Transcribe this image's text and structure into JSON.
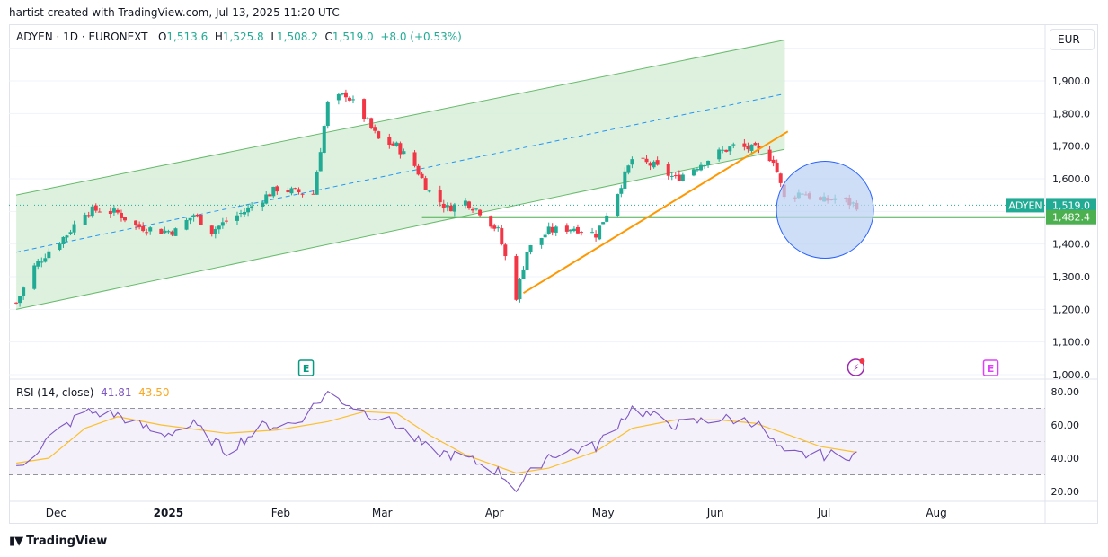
{
  "attribution": "hartist created with TradingView.com, Jul 13, 2025 11:20 UTC",
  "header": {
    "symbol": "ADYEN · 1D · EURONEXT",
    "o_label": "O",
    "o_value": "1,513.6",
    "h_label": "H",
    "h_value": "1,525.8",
    "l_label": "L",
    "l_value": "1,508.2",
    "c_label": "C",
    "c_value": "1,519.0",
    "change": "+8.0 (+0.53%)"
  },
  "currency_button": "EUR",
  "rsi_legend": {
    "name": "RSI (14, close)",
    "rsi_value": "41.81",
    "ma_value": "43.50"
  },
  "brand": "TradingView",
  "colors": {
    "up": "#22ab94",
    "down": "#f23645",
    "channel_fill": "#d8efd9",
    "channel_line": "#66bb6a",
    "mid_line": "#2196f3",
    "trend": "#ff9800",
    "support": "#4caf50",
    "circle_fill": "#bcd3f3",
    "rsi_line": "#7e57c2",
    "rsi_ma": "#fbc02d",
    "rsi_band": "#ede7f6"
  },
  "chart_data": [
    {
      "type": "candlestick",
      "title": "ADYEN · 1D · EURONEXT",
      "ylim": [
        1000,
        2030
      ],
      "y_ticks": [
        "1,000.0",
        "1,100.0",
        "1,200.0",
        "1,300.0",
        "1,400.0",
        "1,500.0",
        "1,600.0",
        "1,700.0",
        "1,800.0",
        "1,900.0"
      ],
      "x_ticks": [
        "Dec",
        "2025",
        "Feb",
        "Mar",
        "Apr",
        "May",
        "Jun",
        "Jul",
        "Aug"
      ],
      "price_labels": [
        {
          "text": "ADYEN",
          "value": 1519.0
        },
        {
          "text": "1,519.0",
          "value": 1519.0
        },
        {
          "text": "1,482.4",
          "value": 1482.4
        }
      ],
      "support_level": 1482.4,
      "event_markers": [
        "E",
        "E"
      ],
      "series": [
        {
          "name": "ADYEN",
          "path": [
            [
              "2024-11-20",
              1220
            ],
            [
              "2024-11-25",
              1330
            ],
            [
              "2024-11-29",
              1380
            ],
            [
              "2024-12-04",
              1430
            ],
            [
              "2024-12-09",
              1500
            ],
            [
              "2024-12-13",
              1505
            ],
            [
              "2024-12-18",
              1495
            ],
            [
              "2024-12-23",
              1455
            ],
            [
              "2024-12-30",
              1440
            ],
            [
              "2025-01-03",
              1440
            ],
            [
              "2025-01-08",
              1490
            ],
            [
              "2025-01-13",
              1440
            ],
            [
              "2025-01-17",
              1470
            ],
            [
              "2025-01-22",
              1500
            ],
            [
              "2025-01-27",
              1540
            ],
            [
              "2025-01-31",
              1570
            ],
            [
              "2025-02-05",
              1560
            ],
            [
              "2025-02-10",
              1555
            ],
            [
              "2025-02-14",
              1830
            ],
            [
              "2025-02-19",
              1860
            ],
            [
              "2025-02-24",
              1790
            ],
            [
              "2025-02-28",
              1720
            ],
            [
              "2025-03-05",
              1700
            ],
            [
              "2025-03-10",
              1640
            ],
            [
              "2025-03-14",
              1560
            ],
            [
              "2025-03-19",
              1510
            ],
            [
              "2025-03-24",
              1530
            ],
            [
              "2025-03-28",
              1500
            ],
            [
              "2025-04-02",
              1440
            ],
            [
              "2025-04-07",
              1240
            ],
            [
              "2025-04-10",
              1380
            ],
            [
              "2025-04-16",
              1440
            ],
            [
              "2025-04-23",
              1450
            ],
            [
              "2025-04-29",
              1430
            ],
            [
              "2025-05-05",
              1560
            ],
            [
              "2025-05-09",
              1660
            ],
            [
              "2025-05-15",
              1640
            ],
            [
              "2025-05-21",
              1600
            ],
            [
              "2025-05-27",
              1640
            ],
            [
              "2025-06-02",
              1680
            ],
            [
              "2025-06-06",
              1700
            ],
            [
              "2025-06-12",
              1690
            ],
            [
              "2025-06-17",
              1660
            ],
            [
              "2025-06-20",
              1540
            ],
            [
              "2025-06-25",
              1560
            ],
            [
              "2025-06-30",
              1530
            ],
            [
              "2025-07-04",
              1540
            ],
            [
              "2025-07-10",
              1519
            ]
          ]
        }
      ],
      "overlays": [
        "regression channel",
        "trend line",
        "support line",
        "highlight circle"
      ]
    },
    {
      "type": "line",
      "title": "RSI (14, close)",
      "ylim": [
        10,
        90
      ],
      "y_ticks": [
        "20.00",
        "40.00",
        "60.00",
        "80.00"
      ],
      "bands": [
        30,
        70
      ],
      "series": [
        {
          "name": "RSI (14, close)",
          "last": 41.81,
          "path": [
            [
              "2024-11-20",
              33
            ],
            [
              "2024-11-29",
              52
            ],
            [
              "2024-12-09",
              68
            ],
            [
              "2024-12-18",
              66
            ],
            [
              "2024-12-30",
              54
            ],
            [
              "2025-01-08",
              60
            ],
            [
              "2025-01-17",
              44
            ],
            [
              "2025-01-27",
              59
            ],
            [
              "2025-02-05",
              61
            ],
            [
              "2025-02-14",
              79
            ],
            [
              "2025-02-24",
              68
            ],
            [
              "2025-03-05",
              60
            ],
            [
              "2025-03-14",
              45
            ],
            [
              "2025-03-24",
              40
            ],
            [
              "2025-04-02",
              32
            ],
            [
              "2025-04-07",
              22
            ],
            [
              "2025-04-16",
              42
            ],
            [
              "2025-04-29",
              47
            ],
            [
              "2025-05-09",
              70
            ],
            [
              "2025-05-21",
              60
            ],
            [
              "2025-06-02",
              64
            ],
            [
              "2025-06-12",
              62
            ],
            [
              "2025-06-20",
              42
            ],
            [
              "2025-06-30",
              42
            ],
            [
              "2025-07-10",
              42
            ]
          ]
        },
        {
          "name": "",
          "last": 43.5,
          "path": [
            [
              "2024-11-20",
              37
            ],
            [
              "2024-11-29",
              40
            ],
            [
              "2024-12-09",
              58
            ],
            [
              "2024-12-18",
              65
            ],
            [
              "2024-12-30",
              60
            ],
            [
              "2025-01-17",
              55
            ],
            [
              "2025-01-31",
              57
            ],
            [
              "2025-02-14",
              62
            ],
            [
              "2025-02-24",
              68
            ],
            [
              "2025-03-05",
              67
            ],
            [
              "2025-03-14",
              54
            ],
            [
              "2025-03-24",
              42
            ],
            [
              "2025-04-07",
              31
            ],
            [
              "2025-04-16",
              34
            ],
            [
              "2025-04-29",
              44
            ],
            [
              "2025-05-09",
              58
            ],
            [
              "2025-05-21",
              63
            ],
            [
              "2025-06-02",
              63
            ],
            [
              "2025-06-12",
              61
            ],
            [
              "2025-06-20",
              55
            ],
            [
              "2025-06-30",
              47
            ],
            [
              "2025-07-10",
              43.5
            ]
          ]
        }
      ]
    }
  ]
}
